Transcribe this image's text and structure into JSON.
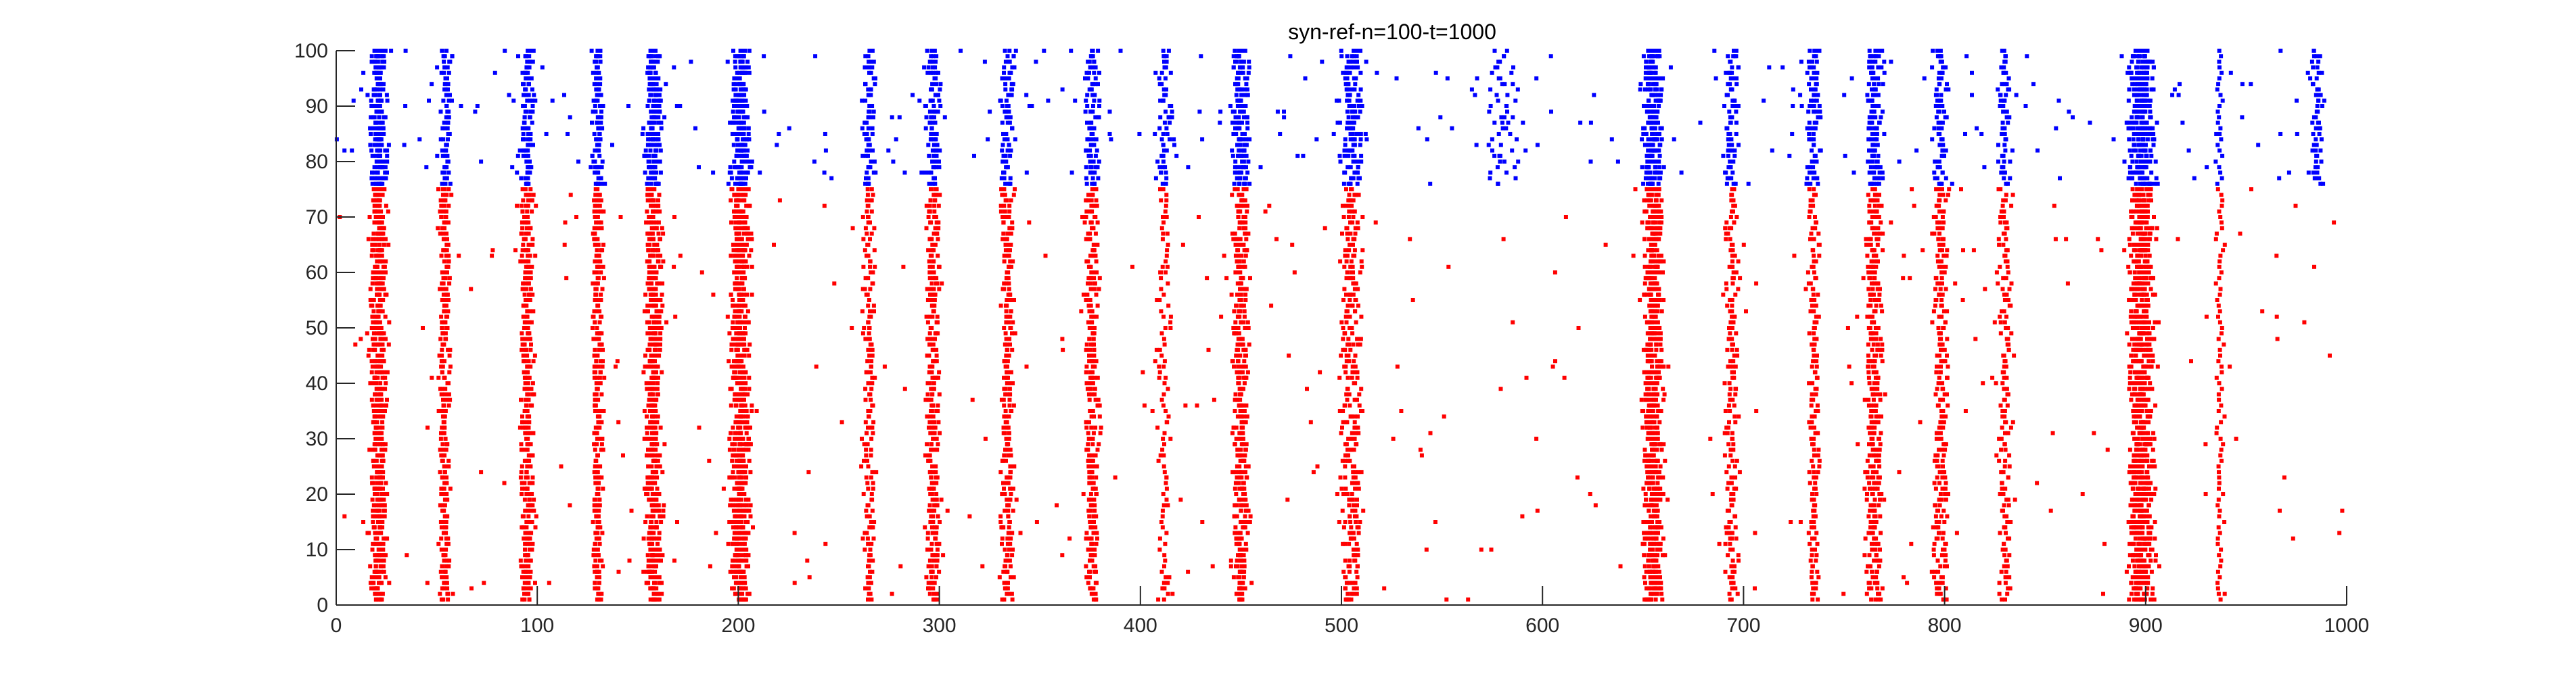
{
  "chart_data": {
    "type": "scatter",
    "title": "syn-ref-n=100-t=1000",
    "xlabel": "",
    "ylabel": "",
    "xlim": [
      0,
      1000
    ],
    "ylim": [
      0,
      100
    ],
    "xticks": [
      0,
      100,
      200,
      300,
      400,
      500,
      600,
      700,
      800,
      900,
      1000
    ],
    "yticks": [
      0,
      10,
      20,
      30,
      40,
      50,
      60,
      70,
      80,
      90,
      100
    ],
    "grid": false,
    "legend": "none",
    "marker": "dot",
    "series": [
      {
        "color": "#ff0000",
        "neurons": [
          1,
          75
        ],
        "bursts": [
          {
            "t": 21,
            "width": 6,
            "density": 0.85
          },
          {
            "t": 54,
            "width": 4,
            "density": 0.55
          },
          {
            "t": 95,
            "width": 5,
            "density": 0.6
          },
          {
            "t": 130,
            "width": 4,
            "density": 0.6
          },
          {
            "t": 158,
            "width": 6,
            "density": 0.85
          },
          {
            "t": 201,
            "width": 7,
            "density": 0.9
          },
          {
            "t": 265,
            "width": 5,
            "density": 0.35
          },
          {
            "t": 297,
            "width": 5,
            "density": 0.55
          },
          {
            "t": 334,
            "width": 5,
            "density": 0.45
          },
          {
            "t": 376,
            "width": 5,
            "density": 0.5
          },
          {
            "t": 412,
            "width": 4,
            "density": 0.25
          },
          {
            "t": 450,
            "width": 6,
            "density": 0.6
          },
          {
            "t": 505,
            "width": 8,
            "density": 0.35
          },
          {
            "t": 655,
            "width": 7,
            "density": 0.9
          },
          {
            "t": 694,
            "width": 5,
            "density": 0.35
          },
          {
            "t": 735,
            "width": 4,
            "density": 0.35
          },
          {
            "t": 765,
            "width": 6,
            "density": 0.55
          },
          {
            "t": 798,
            "width": 5,
            "density": 0.45
          },
          {
            "t": 830,
            "width": 5,
            "density": 0.3
          },
          {
            "t": 898,
            "width": 9,
            "density": 0.95
          },
          {
            "t": 937,
            "width": 3,
            "density": 0.2
          }
        ],
        "background_rate": 0.004
      },
      {
        "color": "#0000ff",
        "neurons": [
          76,
          100
        ],
        "bursts": [
          {
            "t": 21,
            "width": 6,
            "density": 0.85
          },
          {
            "t": 55,
            "width": 4,
            "density": 0.5
          },
          {
            "t": 95,
            "width": 5,
            "density": 0.6
          },
          {
            "t": 130,
            "width": 4,
            "density": 0.6
          },
          {
            "t": 158,
            "width": 6,
            "density": 0.85
          },
          {
            "t": 201,
            "width": 7,
            "density": 0.9
          },
          {
            "t": 265,
            "width": 5,
            "density": 0.4
          },
          {
            "t": 297,
            "width": 5,
            "density": 0.55
          },
          {
            "t": 334,
            "width": 5,
            "density": 0.45
          },
          {
            "t": 376,
            "width": 5,
            "density": 0.5
          },
          {
            "t": 412,
            "width": 5,
            "density": 0.35
          },
          {
            "t": 450,
            "width": 6,
            "density": 0.7
          },
          {
            "t": 505,
            "width": 9,
            "density": 0.45
          },
          {
            "t": 580,
            "width": 12,
            "density": 0.15
          },
          {
            "t": 655,
            "width": 7,
            "density": 0.9
          },
          {
            "t": 694,
            "width": 5,
            "density": 0.4
          },
          {
            "t": 735,
            "width": 5,
            "density": 0.4
          },
          {
            "t": 765,
            "width": 6,
            "density": 0.6
          },
          {
            "t": 798,
            "width": 5,
            "density": 0.45
          },
          {
            "t": 830,
            "width": 5,
            "density": 0.35
          },
          {
            "t": 898,
            "width": 9,
            "density": 0.9
          },
          {
            "t": 937,
            "width": 3,
            "density": 0.25
          },
          {
            "t": 985,
            "width": 5,
            "density": 0.3
          }
        ],
        "background_rate": 0.012
      }
    ]
  }
}
